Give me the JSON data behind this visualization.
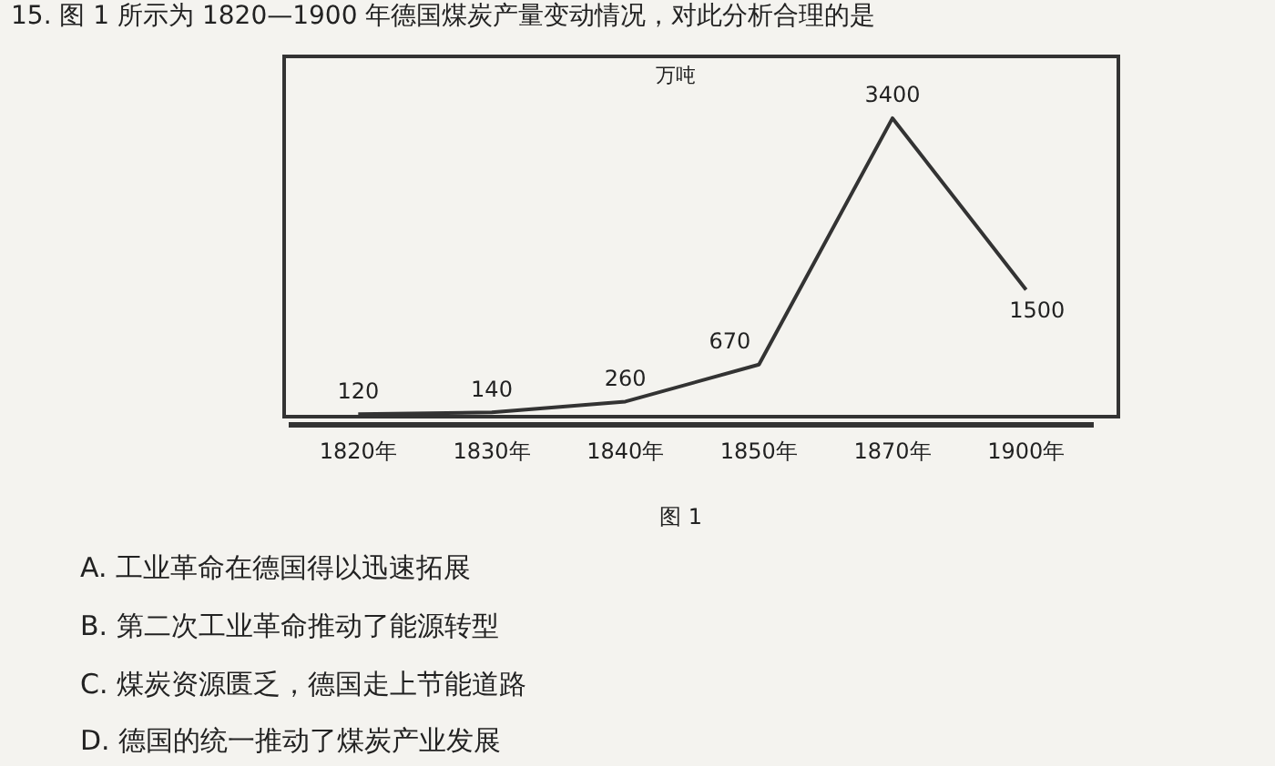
{
  "chart_data": {
    "type": "line",
    "title": "15. 图 1 所示为 1820—1900 年德国煤炭产量变动情况，对此分析合理的是",
    "ylabel": "万吨",
    "categories": [
      "1820年",
      "1830年",
      "1840年",
      "1850年",
      "1870年",
      "1900年"
    ],
    "series": [
      {
        "color": "#333333",
        "values": [
          120,
          140,
          260,
          670,
          3400,
          1500
        ]
      }
    ],
    "data_labels": true,
    "grid": false,
    "legend": false,
    "marker": "none",
    "line_style": "solid",
    "tick_labels": "x",
    "annotations": [
      "图 1",
      "A. 工业革命在德国得以迅速拓展",
      "B. 第二次工业革命推动了能源转型",
      "C. 煤炭资源匮乏，德国走上节能道路",
      "D. 德国的统一推动了煤炭产业发展"
    ]
  }
}
